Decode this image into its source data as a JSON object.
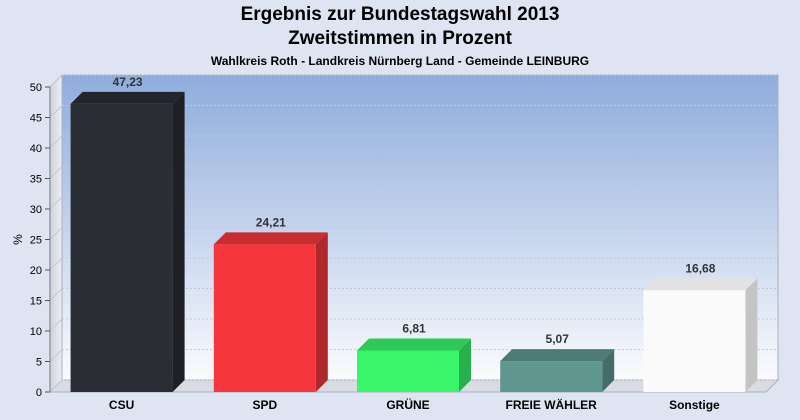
{
  "chart_data": {
    "type": "bar",
    "title": "Ergebnis zur Bundestagswahl 2013",
    "subtitle": "Zweitstimmen in Prozent",
    "caption": "Wahlkreis Roth - Landkreis Nürnberg Land - Gemeinde LEINBURG",
    "ylabel": "%",
    "ylim": [
      0,
      50
    ],
    "yticks": [
      0,
      5,
      10,
      15,
      20,
      25,
      30,
      35,
      40,
      45,
      50
    ],
    "grid": true,
    "categories": [
      "CSU",
      "SPD",
      "GRÜNE",
      "FREIE WÄHLER",
      "Sonstige"
    ],
    "values": [
      47.23,
      24.21,
      6.81,
      5.07,
      16.68
    ],
    "value_labels": [
      "47,23",
      "24,21",
      "6,81",
      "5,07",
      "16,68"
    ],
    "colors": [
      "#2b2d35",
      "#f5363c",
      "#38f56a",
      "#5f9690",
      "#fafafa"
    ]
  }
}
